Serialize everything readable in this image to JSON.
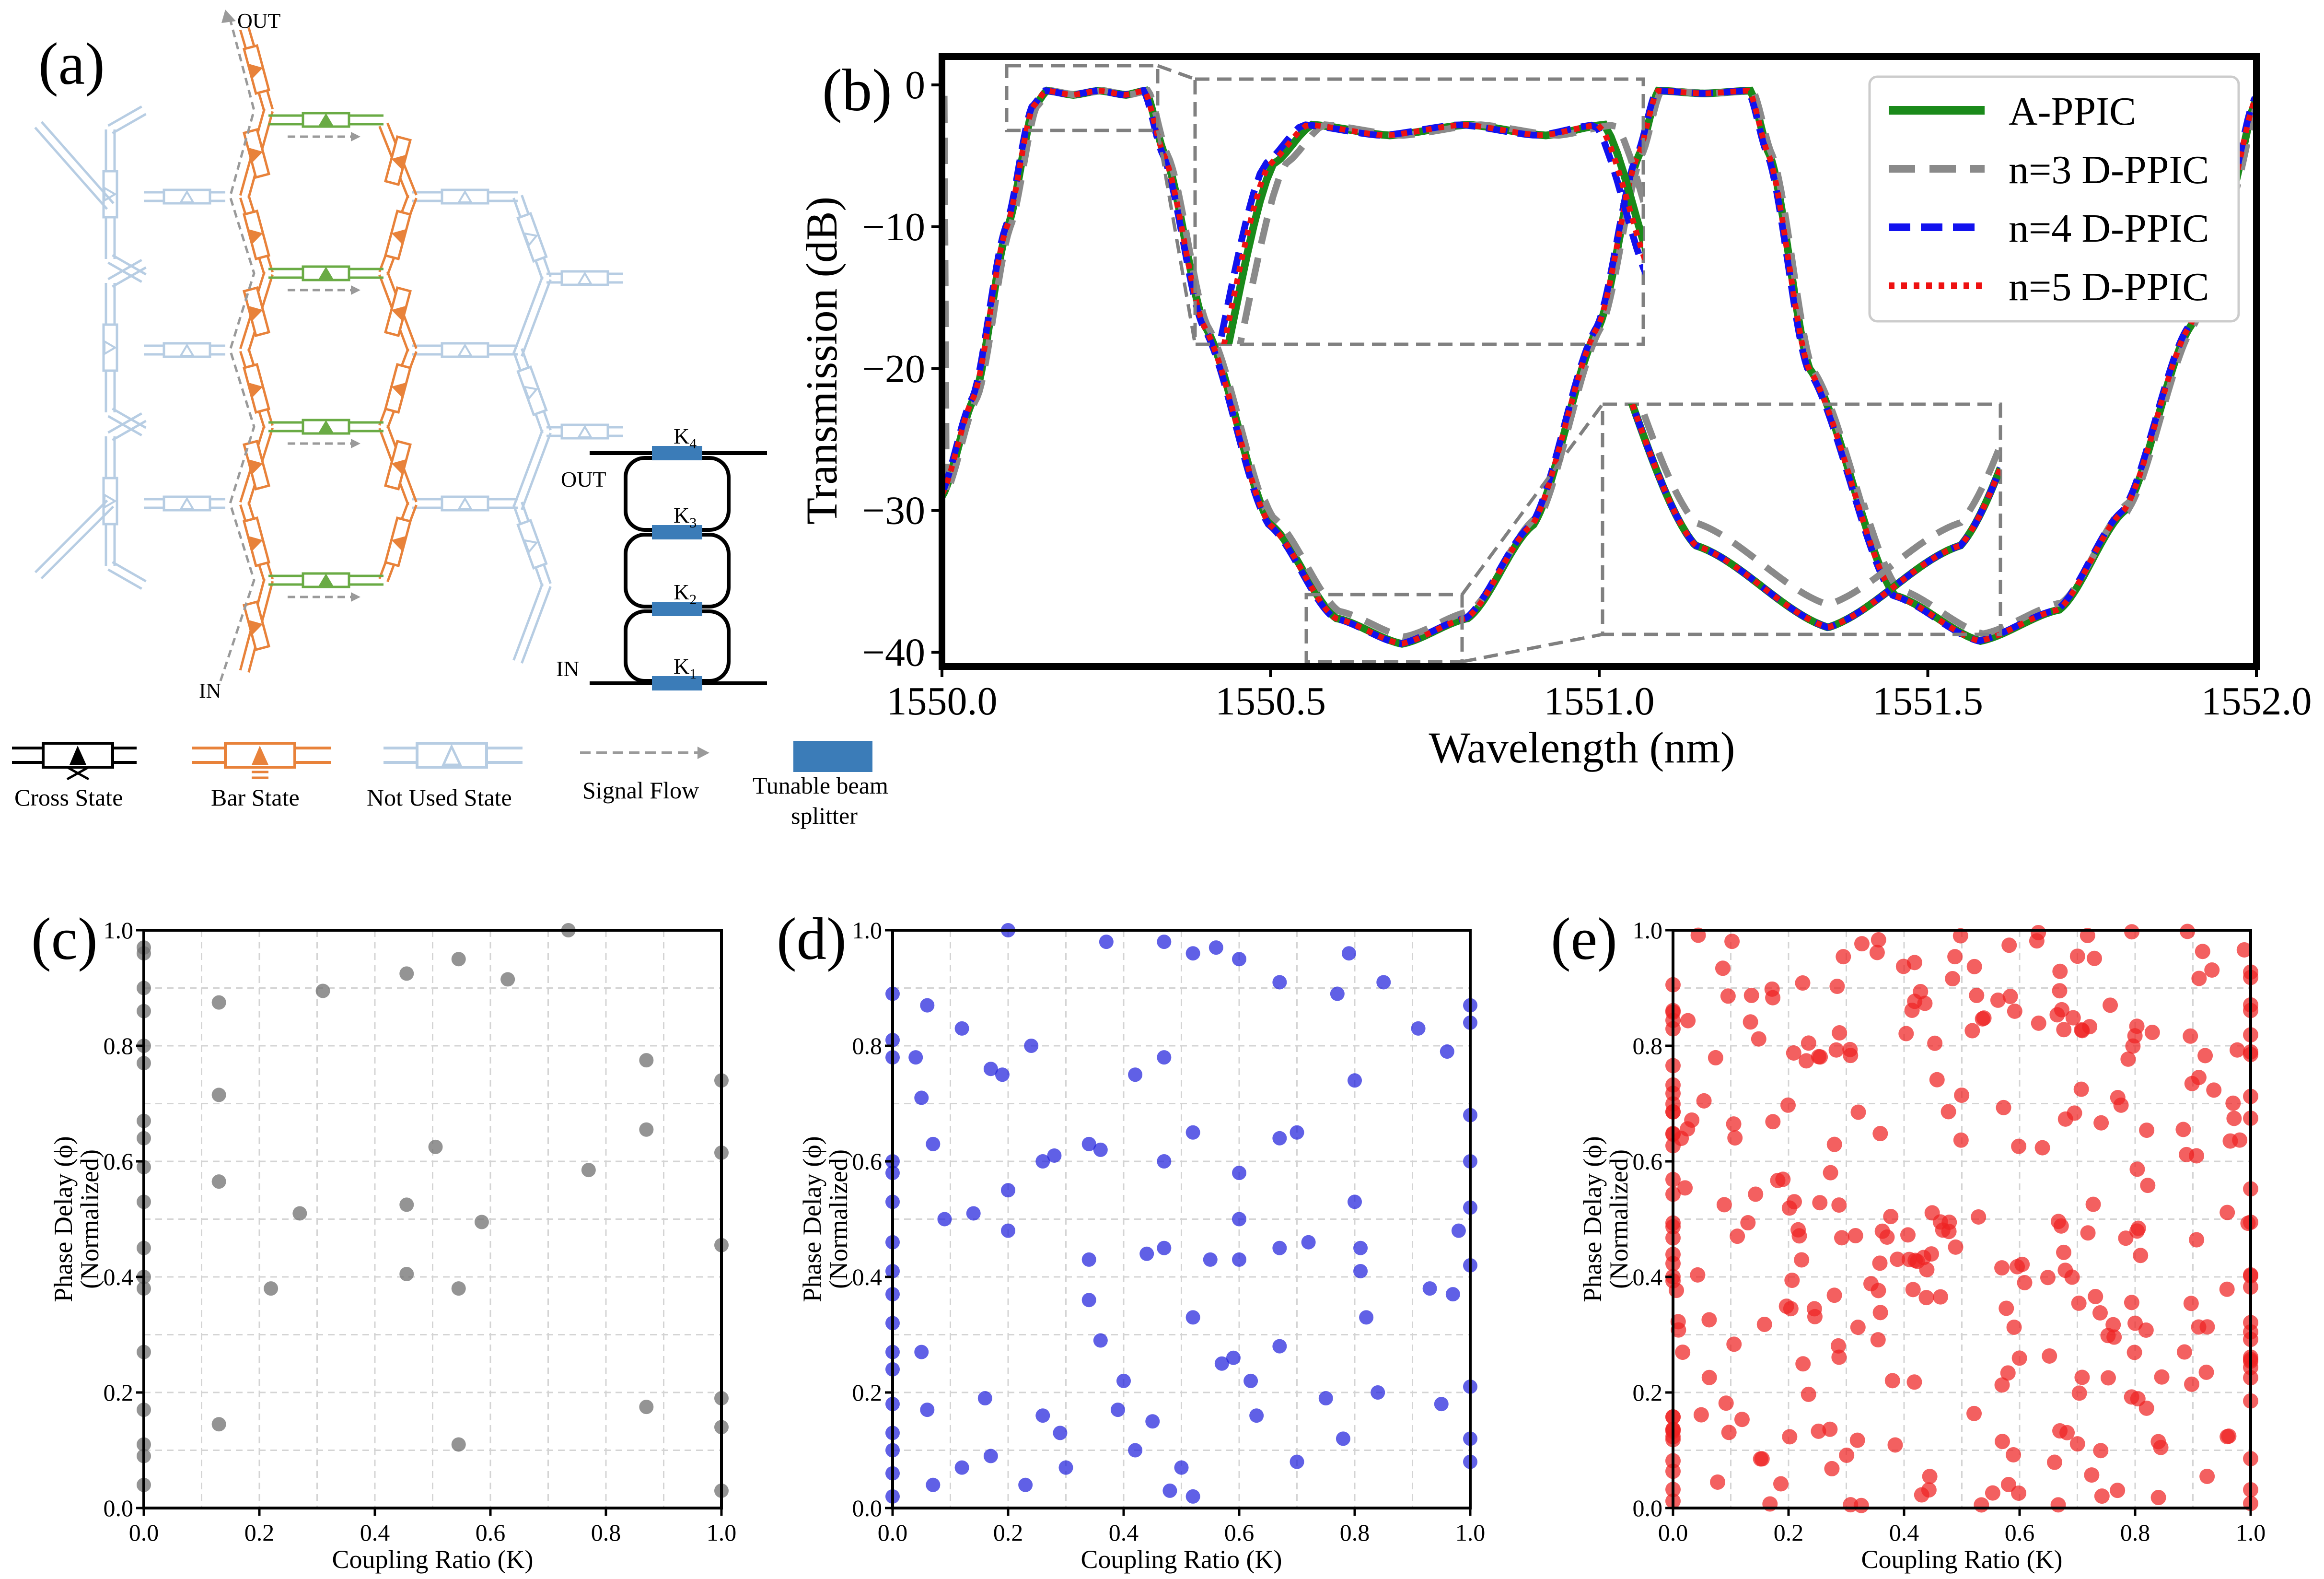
{
  "panel_labels": {
    "a": "(a)",
    "b": "(b)",
    "c": "(c)",
    "d": "(d)",
    "e": "(e)"
  },
  "colors": {
    "cross": "#000000",
    "bar": "#e8823a",
    "not_used": "#b7cde3",
    "signal": "#9a9a9a",
    "green_bar": "#6aab45",
    "splitter": "#3b7cb8",
    "apic": "#1a8a1a",
    "n3": "#8a8a8a",
    "n4": "#1212ee",
    "n5": "#ee1111",
    "scatter_c": "#707070",
    "scatter_d": "#2222dd",
    "scatter_e": "#ee2222"
  },
  "diagram": {
    "out_label": "OUT",
    "in_label": "IN",
    "ring_out_label": "OUT",
    "ring_in_label": "IN",
    "k_labels": [
      "K",
      "K",
      "K",
      "K"
    ],
    "k_subs": [
      "1",
      "2",
      "3",
      "4"
    ]
  },
  "legend_a": {
    "cross": "Cross State",
    "bar": "Bar State",
    "not_used": "Not Used State",
    "signal": "Signal Flow",
    "splitter_line1": "Tunable beam",
    "splitter_line2": "splitter"
  },
  "chart_data": [
    {
      "id": "b",
      "type": "line",
      "title": "",
      "xlabel": "Wavelength (nm)",
      "ylabel": "Transmission (dB)",
      "xlim": [
        1550.0,
        1552.0
      ],
      "ylim": [
        -41,
        2
      ],
      "xticks": [
        1550.0,
        1550.5,
        1551.0,
        1551.5,
        1552.0
      ],
      "xtick_labels": [
        "1550.0",
        "1550.5",
        "1551.0",
        "1551.5",
        "1552.0"
      ],
      "yticks": [
        0,
        -10,
        -20,
        -30,
        -40
      ],
      "ytick_labels": [
        "0",
        "−10",
        "−20",
        "−30",
        "−40"
      ],
      "legend_position": "top-right",
      "series": [
        {
          "name": "A-PPIC",
          "style": "solid"
        },
        {
          "name": "n=3 D-PPIC",
          "style": "dashed"
        },
        {
          "name": "n=4 D-PPIC",
          "style": "dashed"
        },
        {
          "name": "n=5 D-PPIC",
          "style": "dotted"
        }
      ],
      "key_points": [
        [
          1550.0,
          -29
        ],
        [
          1550.05,
          -22
        ],
        [
          1550.1,
          -10
        ],
        [
          1550.14,
          -1.5
        ],
        [
          1550.16,
          -0.4
        ],
        [
          1550.2,
          -0.7
        ],
        [
          1550.24,
          -0.4
        ],
        [
          1550.28,
          -0.7
        ],
        [
          1550.31,
          -0.4
        ],
        [
          1550.34,
          -5
        ],
        [
          1550.4,
          -17
        ],
        [
          1550.5,
          -31
        ],
        [
          1550.6,
          -37.6
        ],
        [
          1550.7,
          -39.4
        ],
        [
          1550.8,
          -37.6
        ],
        [
          1550.9,
          -31
        ],
        [
          1551.0,
          -17
        ],
        [
          1551.06,
          -5
        ],
        [
          1551.09,
          -0.4
        ],
        [
          1551.16,
          -0.6
        ],
        [
          1551.23,
          -0.4
        ],
        [
          1551.26,
          -5
        ],
        [
          1551.32,
          -20
        ],
        [
          1551.45,
          -36
        ],
        [
          1551.58,
          -39.2
        ],
        [
          1551.7,
          -37
        ],
        [
          1551.8,
          -30
        ],
        [
          1551.9,
          -17
        ],
        [
          1551.96,
          -8
        ],
        [
          1552.0,
          -1
        ]
      ]
    },
    {
      "id": "c",
      "type": "scatter",
      "xlabel": "Coupling Ratio (K)",
      "ylabel_line1": "Phase Delay (ϕ)",
      "ylabel_line2": "(Normalized)",
      "xlim": [
        0,
        1
      ],
      "ylim": [
        0,
        1
      ],
      "xticks": [
        "0.0",
        "0.2",
        "0.4",
        "0.6",
        "0.8",
        "1.0"
      ],
      "yticks": [
        "0.0",
        "0.2",
        "0.4",
        "0.6",
        "0.8",
        "1.0"
      ],
      "points": [
        [
          0.0,
          0.97
        ],
        [
          0.0,
          0.96
        ],
        [
          0.0,
          0.9
        ],
        [
          0.0,
          0.86
        ],
        [
          0.0,
          0.8
        ],
        [
          0.0,
          0.77
        ],
        [
          0.0,
          0.67
        ],
        [
          0.0,
          0.64
        ],
        [
          0.0,
          0.59
        ],
        [
          0.0,
          0.53
        ],
        [
          0.0,
          0.45
        ],
        [
          0.0,
          0.4
        ],
        [
          0.0,
          0.38
        ],
        [
          0.0,
          0.27
        ],
        [
          0.0,
          0.17
        ],
        [
          0.0,
          0.11
        ],
        [
          0.0,
          0.09
        ],
        [
          0.0,
          0.04
        ],
        [
          0.13,
          0.875
        ],
        [
          0.13,
          0.715
        ],
        [
          0.13,
          0.565
        ],
        [
          0.13,
          0.145
        ],
        [
          0.22,
          0.38
        ],
        [
          0.27,
          0.51
        ],
        [
          0.31,
          0.895
        ],
        [
          0.455,
          0.925
        ],
        [
          0.455,
          0.525
        ],
        [
          0.455,
          0.405
        ],
        [
          0.505,
          0.625
        ],
        [
          0.545,
          0.95
        ],
        [
          0.545,
          0.38
        ],
        [
          0.545,
          0.11
        ],
        [
          0.585,
          0.495
        ],
        [
          0.63,
          0.915
        ],
        [
          0.735,
          1.0
        ],
        [
          0.77,
          0.585
        ],
        [
          0.87,
          0.775
        ],
        [
          0.87,
          0.655
        ],
        [
          0.87,
          0.175
        ],
        [
          1.0,
          0.74
        ],
        [
          1.0,
          0.615
        ],
        [
          1.0,
          0.455
        ],
        [
          1.0,
          0.19
        ],
        [
          1.0,
          0.14
        ],
        [
          1.0,
          0.03
        ]
      ]
    },
    {
      "id": "d",
      "type": "scatter",
      "xlabel": "Coupling Ratio (K)",
      "ylabel_line1": "Phase Delay (ϕ)",
      "ylabel_line2": "(Normalized)",
      "xlim": [
        0,
        1
      ],
      "ylim": [
        0,
        1
      ],
      "xticks": [
        "0.0",
        "0.2",
        "0.4",
        "0.6",
        "0.8",
        "1.0"
      ],
      "yticks": [
        "0.0",
        "0.2",
        "0.4",
        "0.6",
        "0.8",
        "1.0"
      ],
      "points": [
        [
          0.0,
          0.89
        ],
        [
          0.0,
          0.81
        ],
        [
          0.0,
          0.78
        ],
        [
          0.0,
          0.6
        ],
        [
          0.0,
          0.58
        ],
        [
          0.0,
          0.53
        ],
        [
          0.0,
          0.46
        ],
        [
          0.0,
          0.41
        ],
        [
          0.0,
          0.37
        ],
        [
          0.0,
          0.32
        ],
        [
          0.0,
          0.27
        ],
        [
          0.0,
          0.24
        ],
        [
          0.0,
          0.18
        ],
        [
          0.0,
          0.13
        ],
        [
          0.0,
          0.1
        ],
        [
          0.0,
          0.06
        ],
        [
          0.0,
          0.02
        ],
        [
          0.04,
          0.78
        ],
        [
          0.05,
          0.71
        ],
        [
          0.05,
          0.27
        ],
        [
          0.06,
          0.87
        ],
        [
          0.07,
          0.63
        ],
        [
          0.09,
          0.5
        ],
        [
          0.12,
          0.83
        ],
        [
          0.14,
          0.51
        ],
        [
          0.17,
          0.76
        ],
        [
          0.19,
          0.75
        ],
        [
          0.2,
          1.0
        ],
        [
          0.2,
          0.55
        ],
        [
          0.2,
          0.48
        ],
        [
          0.24,
          0.8
        ],
        [
          0.26,
          0.6
        ],
        [
          0.28,
          0.61
        ],
        [
          0.29,
          0.13
        ],
        [
          0.37,
          0.98
        ],
        [
          0.34,
          0.63
        ],
        [
          0.36,
          0.62
        ],
        [
          0.34,
          0.36
        ],
        [
          0.34,
          0.43
        ],
        [
          0.36,
          0.29
        ],
        [
          0.39,
          0.17
        ],
        [
          0.42,
          0.75
        ],
        [
          0.45,
          0.15
        ],
        [
          0.47,
          0.98
        ],
        [
          0.47,
          0.78
        ],
        [
          0.47,
          0.6
        ],
        [
          0.47,
          0.45
        ],
        [
          0.48,
          0.03
        ],
        [
          0.52,
          0.96
        ],
        [
          0.52,
          0.65
        ],
        [
          0.52,
          0.33
        ],
        [
          0.52,
          0.02
        ],
        [
          0.55,
          0.43
        ],
        [
          0.56,
          0.97
        ],
        [
          0.6,
          0.95
        ],
        [
          0.6,
          0.58
        ],
        [
          0.6,
          0.5
        ],
        [
          0.6,
          0.43
        ],
        [
          0.57,
          0.25
        ],
        [
          0.59,
          0.26
        ],
        [
          0.67,
          0.91
        ],
        [
          0.67,
          0.64
        ],
        [
          0.67,
          0.45
        ],
        [
          0.67,
          0.28
        ],
        [
          0.7,
          0.65
        ],
        [
          0.72,
          0.46
        ],
        [
          0.77,
          0.89
        ],
        [
          0.79,
          0.96
        ],
        [
          0.8,
          0.74
        ],
        [
          0.8,
          0.53
        ],
        [
          0.81,
          0.45
        ],
        [
          0.81,
          0.41
        ],
        [
          0.82,
          0.33
        ],
        [
          0.84,
          0.2
        ],
        [
          0.85,
          0.91
        ],
        [
          0.91,
          0.83
        ],
        [
          0.93,
          0.38
        ],
        [
          0.95,
          0.18
        ],
        [
          0.96,
          0.79
        ],
        [
          0.97,
          0.37
        ],
        [
          0.98,
          0.48
        ],
        [
          1.0,
          0.87
        ],
        [
          1.0,
          0.84
        ],
        [
          1.0,
          0.68
        ],
        [
          1.0,
          0.6
        ],
        [
          1.0,
          0.52
        ],
        [
          1.0,
          0.42
        ],
        [
          1.0,
          0.21
        ],
        [
          1.0,
          0.12
        ],
        [
          1.0,
          0.08
        ],
        [
          0.06,
          0.17
        ],
        [
          0.07,
          0.04
        ],
        [
          0.12,
          0.07
        ],
        [
          0.16,
          0.19
        ],
        [
          0.17,
          0.09
        ],
        [
          0.23,
          0.04
        ],
        [
          0.26,
          0.16
        ],
        [
          0.3,
          0.07
        ],
        [
          0.4,
          0.22
        ],
        [
          0.42,
          0.1
        ],
        [
          0.44,
          0.44
        ],
        [
          0.5,
          0.07
        ],
        [
          0.62,
          0.22
        ],
        [
          0.63,
          0.16
        ],
        [
          0.7,
          0.08
        ],
        [
          0.75,
          0.19
        ],
        [
          0.78,
          0.12
        ]
      ]
    },
    {
      "id": "e",
      "type": "scatter",
      "xlabel": "Coupling Ratio (K)",
      "ylabel_line1": "Phase Delay (ϕ)",
      "ylabel_line2": "(Normalized)",
      "xlim": [
        0,
        1
      ],
      "ylim": [
        0,
        1
      ],
      "xticks": [
        "0.0",
        "0.2",
        "0.4",
        "0.6",
        "0.8",
        "1.0"
      ],
      "yticks": [
        "0.0",
        "0.2",
        "0.4",
        "0.6",
        "0.8",
        "1.0"
      ],
      "density_note": "dense uniform scatter, ~330 points",
      "point_count": 330,
      "seed": 12345
    }
  ]
}
